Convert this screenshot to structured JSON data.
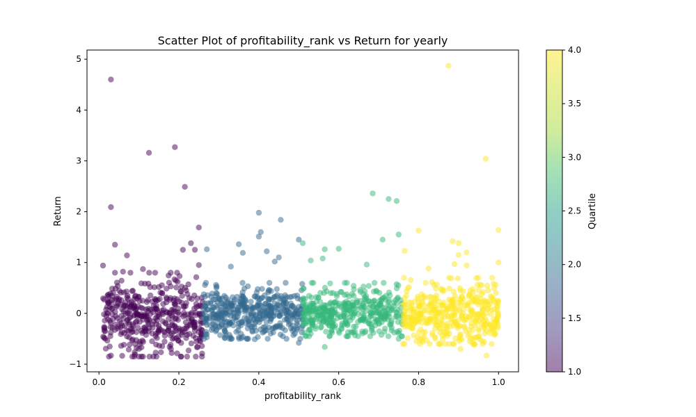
{
  "chart_data": {
    "type": "scatter",
    "title": "Scatter Plot of profitability_rank vs Return for yearly",
    "xlabel": "profitability_rank",
    "ylabel": "Return",
    "xlim": [
      -0.03,
      1.05
    ],
    "ylim": [
      -1.15,
      5.18
    ],
    "xticks": [
      "0.0",
      "0.2",
      "0.4",
      "0.6",
      "0.8",
      "1.0"
    ],
    "yticks": [
      "−1",
      "0",
      "1",
      "2",
      "3",
      "4",
      "5"
    ],
    "grid": false,
    "colorbar": {
      "label": "Quartile",
      "range": [
        1.0,
        4.0
      ],
      "ticks": [
        "1.0",
        "1.5",
        "2.0",
        "2.5",
        "3.0",
        "3.5",
        "4.0"
      ],
      "colormap": "viridis",
      "alpha": 0.5
    },
    "series": [
      {
        "quartile": 1,
        "color": "#440154",
        "x_range": [
          0.01,
          0.26
        ],
        "bulk_y_range": [
          -0.85,
          0.8
        ],
        "outliers": [
          [
            0.03,
            4.6
          ],
          [
            0.125,
            3.16
          ],
          [
            0.19,
            3.27
          ],
          [
            0.215,
            2.49
          ],
          [
            0.03,
            2.09
          ],
          [
            0.25,
            1.69
          ],
          [
            0.04,
            1.35
          ],
          [
            0.07,
            1.14
          ],
          [
            0.23,
            1.38
          ],
          [
            0.21,
            1.25
          ],
          [
            0.24,
            1.25
          ],
          [
            0.01,
            0.94
          ],
          [
            0.11,
            0.87
          ],
          [
            0.06,
            0.82
          ],
          [
            0.25,
            0.95
          ],
          [
            0.18,
            -0.7
          ],
          [
            0.09,
            -0.81
          ],
          [
            0.03,
            -0.83
          ]
        ]
      },
      {
        "quartile": 2,
        "color": "#31688e",
        "x_range": [
          0.26,
          0.51
        ],
        "bulk_y_range": [
          -0.5,
          0.6
        ],
        "outliers": [
          [
            0.4,
            1.98
          ],
          [
            0.455,
            1.84
          ],
          [
            0.405,
            1.6
          ],
          [
            0.4,
            1.51
          ],
          [
            0.35,
            1.36
          ],
          [
            0.5,
            1.45
          ],
          [
            0.27,
            1.26
          ],
          [
            0.42,
            1.22
          ],
          [
            0.36,
            1.19
          ],
          [
            0.45,
            1.1
          ],
          [
            0.44,
            1.02
          ],
          [
            0.33,
            0.92
          ],
          [
            0.5,
            -0.58
          ],
          [
            0.46,
            -0.45
          ],
          [
            0.39,
            -0.51
          ],
          [
            0.27,
            -0.47
          ]
        ]
      },
      {
        "quartile": 3,
        "color": "#35b779",
        "x_range": [
          0.51,
          0.76
        ],
        "bulk_y_range": [
          -0.45,
          0.6
        ],
        "outliers": [
          [
            0.685,
            2.36
          ],
          [
            0.725,
            2.25
          ],
          [
            0.745,
            2.21
          ],
          [
            0.75,
            1.55
          ],
          [
            0.71,
            1.45
          ],
          [
            0.51,
            1.38
          ],
          [
            0.565,
            1.26
          ],
          [
            0.6,
            1.27
          ],
          [
            0.56,
            1.08
          ],
          [
            0.53,
            1.04
          ],
          [
            0.67,
            0.96
          ],
          [
            0.565,
            -0.66
          ],
          [
            0.75,
            -0.5
          ],
          [
            0.53,
            -0.4
          ]
        ]
      },
      {
        "quartile": 4,
        "color": "#fde725",
        "x_range": [
          0.76,
          1.0
        ],
        "bulk_y_range": [
          -0.6,
          0.7
        ],
        "outliers": [
          [
            0.875,
            4.87
          ],
          [
            0.968,
            3.04
          ],
          [
            0.8,
            1.63
          ],
          [
            1.0,
            1.64
          ],
          [
            0.885,
            1.42
          ],
          [
            0.9,
            1.38
          ],
          [
            0.92,
            1.2
          ],
          [
            0.765,
            1.23
          ],
          [
            0.9,
            1.15
          ],
          [
            0.89,
            0.97
          ],
          [
            0.92,
            0.94
          ],
          [
            0.825,
            0.88
          ],
          [
            1.0,
            1.0
          ],
          [
            0.97,
            -0.83
          ],
          [
            0.905,
            -0.7
          ],
          [
            0.81,
            -0.56
          ],
          [
            0.94,
            -0.62
          ]
        ]
      }
    ],
    "points_per_series": 430
  }
}
